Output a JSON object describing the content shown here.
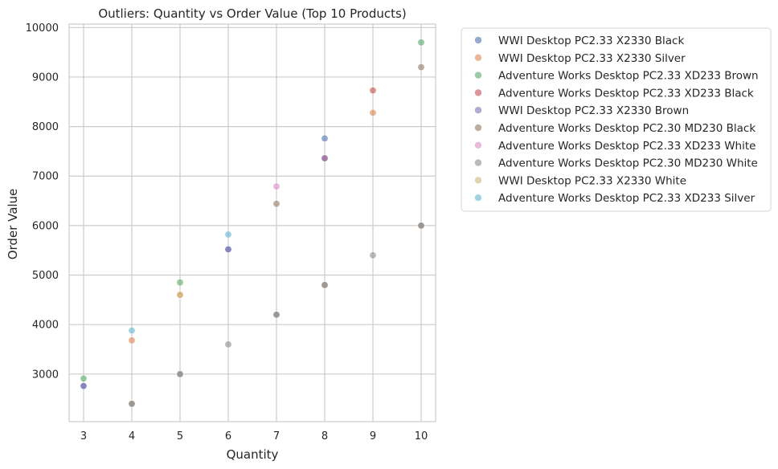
{
  "chart_data": {
    "type": "scatter",
    "title": "Outliers: Quantity vs Order Value (Top 10 Products)",
    "xlabel": "Quantity",
    "ylabel": "Order Value",
    "xlim": [
      2.7,
      10.3
    ],
    "ylim": [
      2040,
      10070
    ],
    "xticks": [
      3,
      4,
      5,
      6,
      7,
      8,
      9,
      10
    ],
    "yticks": [
      3000,
      4000,
      5000,
      6000,
      7000,
      8000,
      9000,
      10000
    ],
    "grid": true,
    "legend_position": "outside-right",
    "series": [
      {
        "name": "WWI Desktop PC2.33 X2330 Black",
        "color": "#4c72b0",
        "x": [
          3,
          6,
          8
        ],
        "y": [
          2760,
          5520,
          7760
        ]
      },
      {
        "name": "WWI Desktop PC2.33 X2330 Silver",
        "color": "#dd8452",
        "x": [
          4,
          5,
          9
        ],
        "y": [
          3680,
          4600,
          8280
        ]
      },
      {
        "name": "Adventure Works Desktop PC2.33 XD233 Brown",
        "color": "#55a868",
        "x": [
          3,
          5,
          10
        ],
        "y": [
          2910,
          4850,
          9700
        ]
      },
      {
        "name": "Adventure Works Desktop PC2.33 XD233 Black",
        "color": "#c44e52",
        "x": [
          8,
          9
        ],
        "y": [
          7360,
          8730
        ]
      },
      {
        "name": "WWI Desktop PC2.33 X2330 Brown",
        "color": "#8172b3",
        "x": [
          3,
          6,
          8
        ],
        "y": [
          2760,
          5520,
          7360
        ]
      },
      {
        "name": "Adventure Works Desktop PC2.30 MD230 Black",
        "color": "#937860",
        "x": [
          4,
          5,
          7,
          8,
          10,
          7,
          10
        ],
        "y": [
          2400,
          3000,
          4200,
          4800,
          6000,
          6440,
          9200
        ]
      },
      {
        "name": "Adventure Works Desktop PC2.33 XD233 White",
        "color": "#da8bc3",
        "x": [
          7
        ],
        "y": [
          6790
        ]
      },
      {
        "name": "Adventure Works Desktop PC2.30 MD230 White",
        "color": "#8c8c8c",
        "x": [
          4,
          5,
          6,
          7,
          8,
          9,
          10
        ],
        "y": [
          2400,
          3000,
          3600,
          4200,
          4800,
          5400,
          6000
        ]
      },
      {
        "name": "WWI Desktop PC2.33 X2330 White",
        "color": "#ccb974",
        "x": [
          5
        ],
        "y": [
          4600
        ]
      },
      {
        "name": "Adventure Works Desktop PC2.33 XD233 Silver",
        "color": "#64b5cd",
        "x": [
          4,
          6
        ],
        "y": [
          3880,
          5820
        ]
      }
    ]
  }
}
